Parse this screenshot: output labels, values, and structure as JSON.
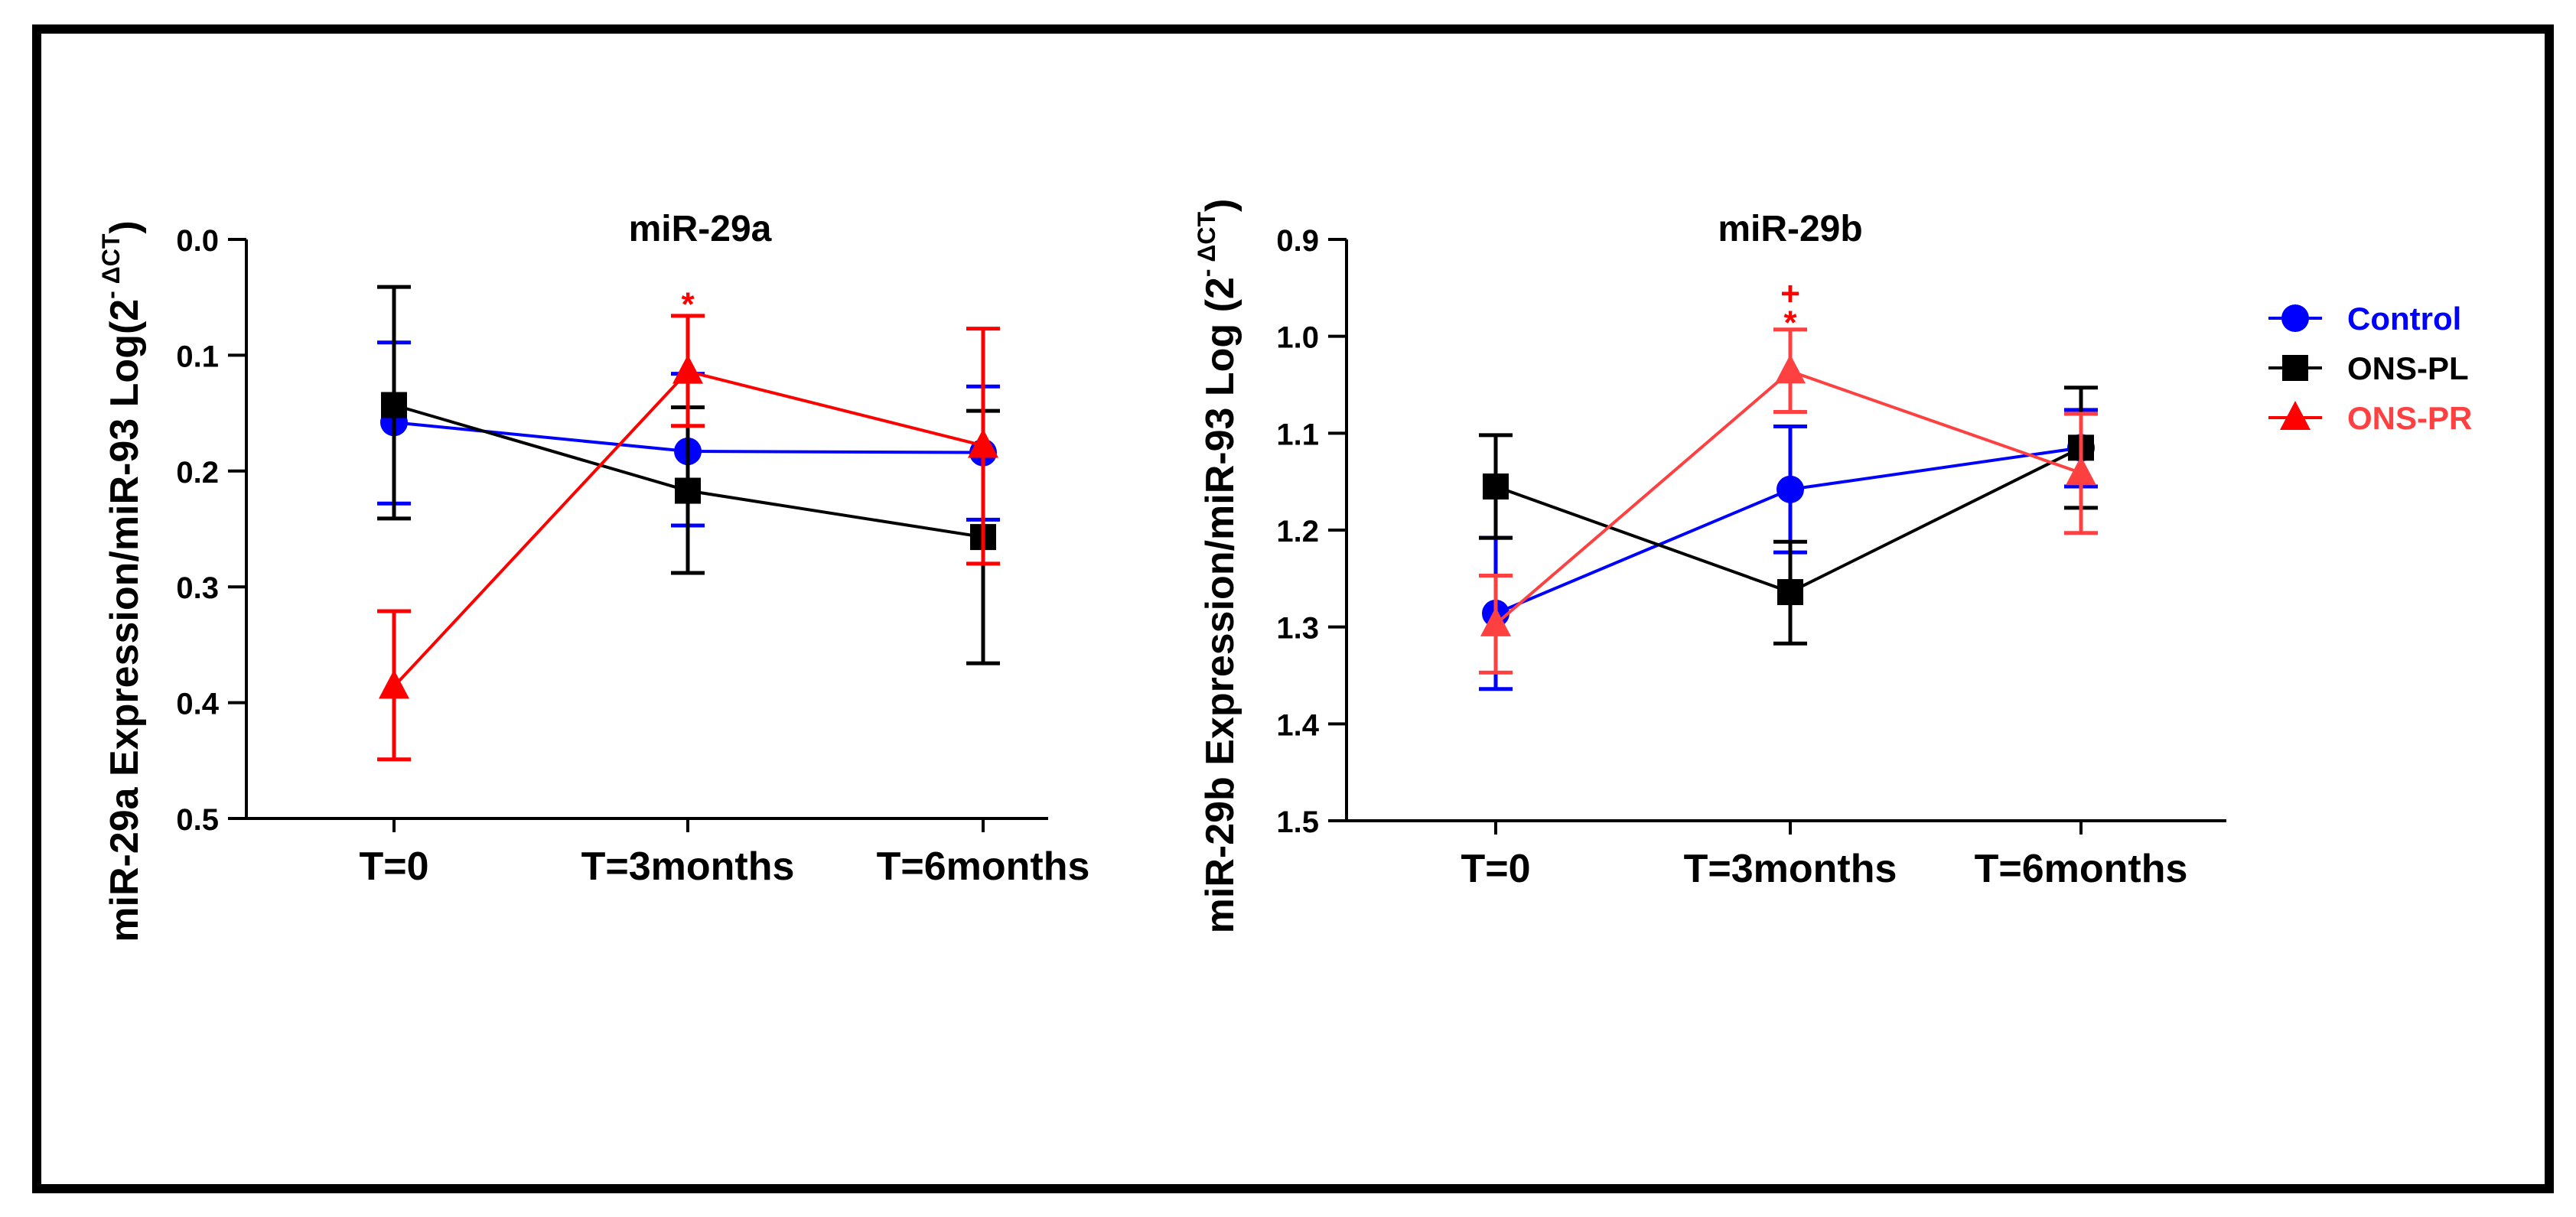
{
  "chart_data": [
    {
      "type": "line",
      "title": "miR-29a",
      "ylabel": "miR-29a Expression/miR-93 Log(2",
      "ylabel_superscript": "- ΔCT",
      "ylabel_close": ")",
      "categories": [
        "T=0",
        "T=3months",
        "T=6months"
      ],
      "ylim": [
        0.0,
        0.5
      ],
      "y_inverted": true,
      "yticks": [
        0.0,
        0.1,
        0.2,
        0.3,
        0.4,
        0.5
      ],
      "ytick_labels": [
        "0.0",
        "0.1",
        "0.2",
        "0.3",
        "0.4",
        "0.5"
      ],
      "series": [
        {
          "name": "Control",
          "color": "#0000ff",
          "marker": "circle",
          "values": [
            0.158,
            0.183,
            0.184
          ],
          "err_low": [
            0.089,
            0.116,
            0.127
          ],
          "err_high": [
            0.228,
            0.247,
            0.242
          ]
        },
        {
          "name": "ONS-PL",
          "color": "#000000",
          "marker": "square",
          "values": [
            0.143,
            0.217,
            0.257
          ],
          "err_low": [
            0.041,
            0.145,
            0.148
          ],
          "err_high": [
            0.241,
            0.288,
            0.366
          ]
        },
        {
          "name": "ONS-PR",
          "color": "#ff0000",
          "marker": "triangle",
          "values": [
            0.386,
            0.114,
            0.178
          ],
          "err_low": [
            0.321,
            0.066,
            0.077
          ],
          "err_high": [
            0.449,
            0.161,
            0.28
          ]
        }
      ],
      "annotations": [
        {
          "text": "*",
          "category": "T=3months",
          "value": 0.055,
          "color": "#ff0000"
        }
      ]
    },
    {
      "type": "line",
      "title": "miR-29b",
      "ylabel": "miR-29b Expression/miR-93 Log (2",
      "ylabel_superscript": "- ΔCT",
      "ylabel_close": ")",
      "categories": [
        "T=0",
        "T=3months",
        "T=6months"
      ],
      "ylim": [
        0.9,
        1.5
      ],
      "y_inverted": true,
      "yticks": [
        0.9,
        1.0,
        1.1,
        1.2,
        1.3,
        1.4,
        1.5
      ],
      "ytick_labels": [
        "0.9",
        "1.0",
        "1.1",
        "1.2",
        "1.3",
        "1.4",
        "1.5"
      ],
      "series": [
        {
          "name": "Control",
          "color": "#0000ff",
          "marker": "circle",
          "values": [
            1.286,
            1.158,
            1.115
          ],
          "err_low": [
            1.208,
            1.093,
            1.076
          ],
          "err_high": [
            1.364,
            1.223,
            1.155
          ]
        },
        {
          "name": "ONS-PL",
          "color": "#000000",
          "marker": "square",
          "values": [
            1.155,
            1.264,
            1.115
          ],
          "err_low": [
            1.102,
            1.212,
            1.053
          ],
          "err_high": [
            1.208,
            1.317,
            1.177
          ]
        },
        {
          "name": "ONS-PR",
          "color": "#ff4040",
          "marker": "triangle",
          "values": [
            1.297,
            1.036,
            1.141
          ],
          "err_low": [
            1.247,
            0.993,
            1.08
          ],
          "err_high": [
            1.347,
            1.078,
            1.203
          ]
        }
      ],
      "annotations": [
        {
          "text": "+",
          "category": "T=3months",
          "value": 0.955,
          "color": "#ff0000"
        },
        {
          "text": "*",
          "category": "T=3months",
          "value": 0.985,
          "color": "#ff0000"
        }
      ]
    }
  ],
  "legend": {
    "items": [
      {
        "label": "Control",
        "color": "#0000ff",
        "text_color": "#0000ff",
        "marker": "circle"
      },
      {
        "label": "ONS-PL",
        "color": "#000000",
        "text_color": "#000000",
        "marker": "square"
      },
      {
        "label": "ONS-PR",
        "color": "#ff0000",
        "text_color": "#ff4040",
        "marker": "triangle"
      }
    ]
  }
}
